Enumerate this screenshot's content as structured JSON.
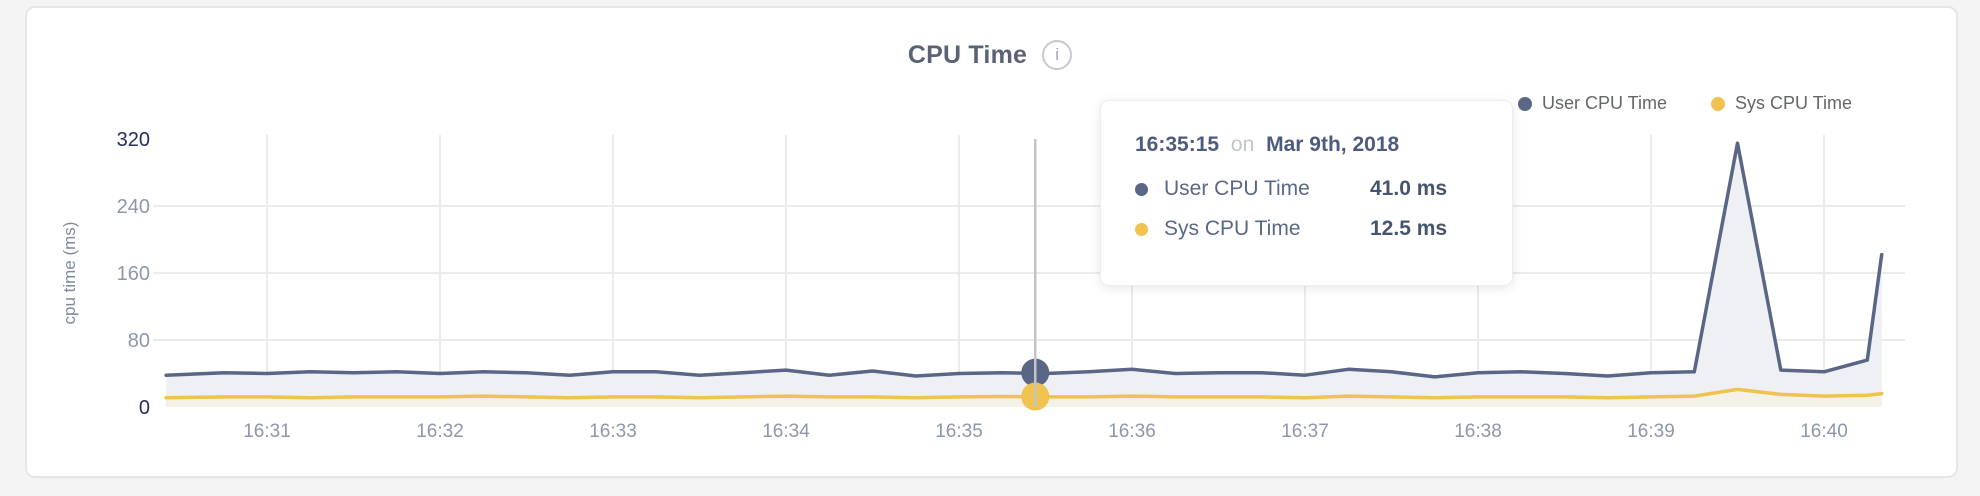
{
  "header": {
    "title": "CPU Time"
  },
  "legend": {
    "items": [
      {
        "label": "User CPU Time",
        "color": "#5a6686"
      },
      {
        "label": "Sys CPU Time",
        "color": "#f0c24f"
      }
    ]
  },
  "tooltip": {
    "time": "16:35:15",
    "preposition": "on",
    "date": "Mar 9th, 2018",
    "rows": [
      {
        "label": "User CPU Time",
        "value": "41.0 ms",
        "color": "#5a6686"
      },
      {
        "label": "Sys CPU Time",
        "value": "12.5 ms",
        "color": "#f0c24f"
      }
    ]
  },
  "chart_data": {
    "type": "area",
    "title": "CPU Time",
    "ylabel": "cpu time (ms)",
    "ylim": [
      0,
      320
    ],
    "y_ticks": [
      0,
      80,
      160,
      240,
      320
    ],
    "y_ticks_emphasized": [
      0,
      320
    ],
    "x_ticks": [
      "16:31",
      "16:32",
      "16:33",
      "16:34",
      "16:35",
      "16:36",
      "16:37",
      "16:38",
      "16:39",
      "16:40"
    ],
    "grid": {
      "horizontal_at": [
        80,
        160,
        240
      ],
      "vertical_at_minutes": true
    },
    "legend_position": "top-right",
    "hover": {
      "time": "16:35:15",
      "values": {
        "User CPU Time": 41.0,
        "Sys CPU Time": 12.5
      }
    },
    "colors": {
      "grid": "#ebebed",
      "crosshair": "#c2c4c8",
      "x_label": "#8d97aa",
      "y_label": "#8d97aa",
      "y_label_emphasized": "#22305a",
      "y_axis_title": "#7e89a0"
    },
    "series": [
      {
        "name": "User CPU Time",
        "color": "#5a6686",
        "fill": "#eef0f4",
        "points": [
          [
            "16:30:25",
            38
          ],
          [
            "16:30:45",
            41
          ],
          [
            "16:31:00",
            40
          ],
          [
            "16:31:15",
            42
          ],
          [
            "16:31:30",
            41
          ],
          [
            "16:31:45",
            42
          ],
          [
            "16:32:00",
            40
          ],
          [
            "16:32:15",
            42
          ],
          [
            "16:32:30",
            41
          ],
          [
            "16:32:45",
            38
          ],
          [
            "16:33:00",
            42
          ],
          [
            "16:33:15",
            42
          ],
          [
            "16:33:30",
            38
          ],
          [
            "16:33:45",
            41
          ],
          [
            "16:34:00",
            44
          ],
          [
            "16:34:15",
            38
          ],
          [
            "16:34:30",
            43
          ],
          [
            "16:34:45",
            37
          ],
          [
            "16:35:00",
            40
          ],
          [
            "16:35:15",
            41
          ],
          [
            "16:35:30",
            40
          ],
          [
            "16:35:45",
            42
          ],
          [
            "16:36:00",
            45
          ],
          [
            "16:36:15",
            40
          ],
          [
            "16:36:30",
            41
          ],
          [
            "16:36:45",
            41
          ],
          [
            "16:37:00",
            38
          ],
          [
            "16:37:15",
            45
          ],
          [
            "16:37:30",
            42
          ],
          [
            "16:37:45",
            36
          ],
          [
            "16:38:00",
            41
          ],
          [
            "16:38:15",
            42
          ],
          [
            "16:38:30",
            40
          ],
          [
            "16:38:45",
            37
          ],
          [
            "16:39:00",
            41
          ],
          [
            "16:39:15",
            42
          ],
          [
            "16:39:30",
            315
          ],
          [
            "16:39:45",
            44
          ],
          [
            "16:40:00",
            42
          ],
          [
            "16:40:15",
            56
          ],
          [
            "16:40:20",
            182
          ]
        ]
      },
      {
        "name": "Sys CPU Time",
        "color": "#f0c24f",
        "fill": "#f4f1e7",
        "points": [
          [
            "16:30:25",
            11
          ],
          [
            "16:30:45",
            12
          ],
          [
            "16:31:00",
            12
          ],
          [
            "16:31:15",
            11
          ],
          [
            "16:31:30",
            12
          ],
          [
            "16:31:45",
            12
          ],
          [
            "16:32:00",
            12
          ],
          [
            "16:32:15",
            13
          ],
          [
            "16:32:30",
            12
          ],
          [
            "16:32:45",
            11
          ],
          [
            "16:33:00",
            12
          ],
          [
            "16:33:15",
            12
          ],
          [
            "16:33:30",
            11
          ],
          [
            "16:33:45",
            12
          ],
          [
            "16:34:00",
            13
          ],
          [
            "16:34:15",
            12
          ],
          [
            "16:34:30",
            12
          ],
          [
            "16:34:45",
            11
          ],
          [
            "16:35:00",
            12
          ],
          [
            "16:35:15",
            12.5
          ],
          [
            "16:35:30",
            12
          ],
          [
            "16:35:45",
            12
          ],
          [
            "16:36:00",
            13
          ],
          [
            "16:36:15",
            12
          ],
          [
            "16:36:30",
            12
          ],
          [
            "16:36:45",
            12
          ],
          [
            "16:37:00",
            11
          ],
          [
            "16:37:15",
            13
          ],
          [
            "16:37:30",
            12
          ],
          [
            "16:37:45",
            11
          ],
          [
            "16:38:00",
            12
          ],
          [
            "16:38:15",
            12
          ],
          [
            "16:38:30",
            12
          ],
          [
            "16:38:45",
            11
          ],
          [
            "16:39:00",
            12
          ],
          [
            "16:39:15",
            13
          ],
          [
            "16:39:30",
            21
          ],
          [
            "16:39:45",
            15
          ],
          [
            "16:40:00",
            13
          ],
          [
            "16:40:15",
            14
          ],
          [
            "16:40:20",
            16
          ]
        ]
      }
    ]
  }
}
